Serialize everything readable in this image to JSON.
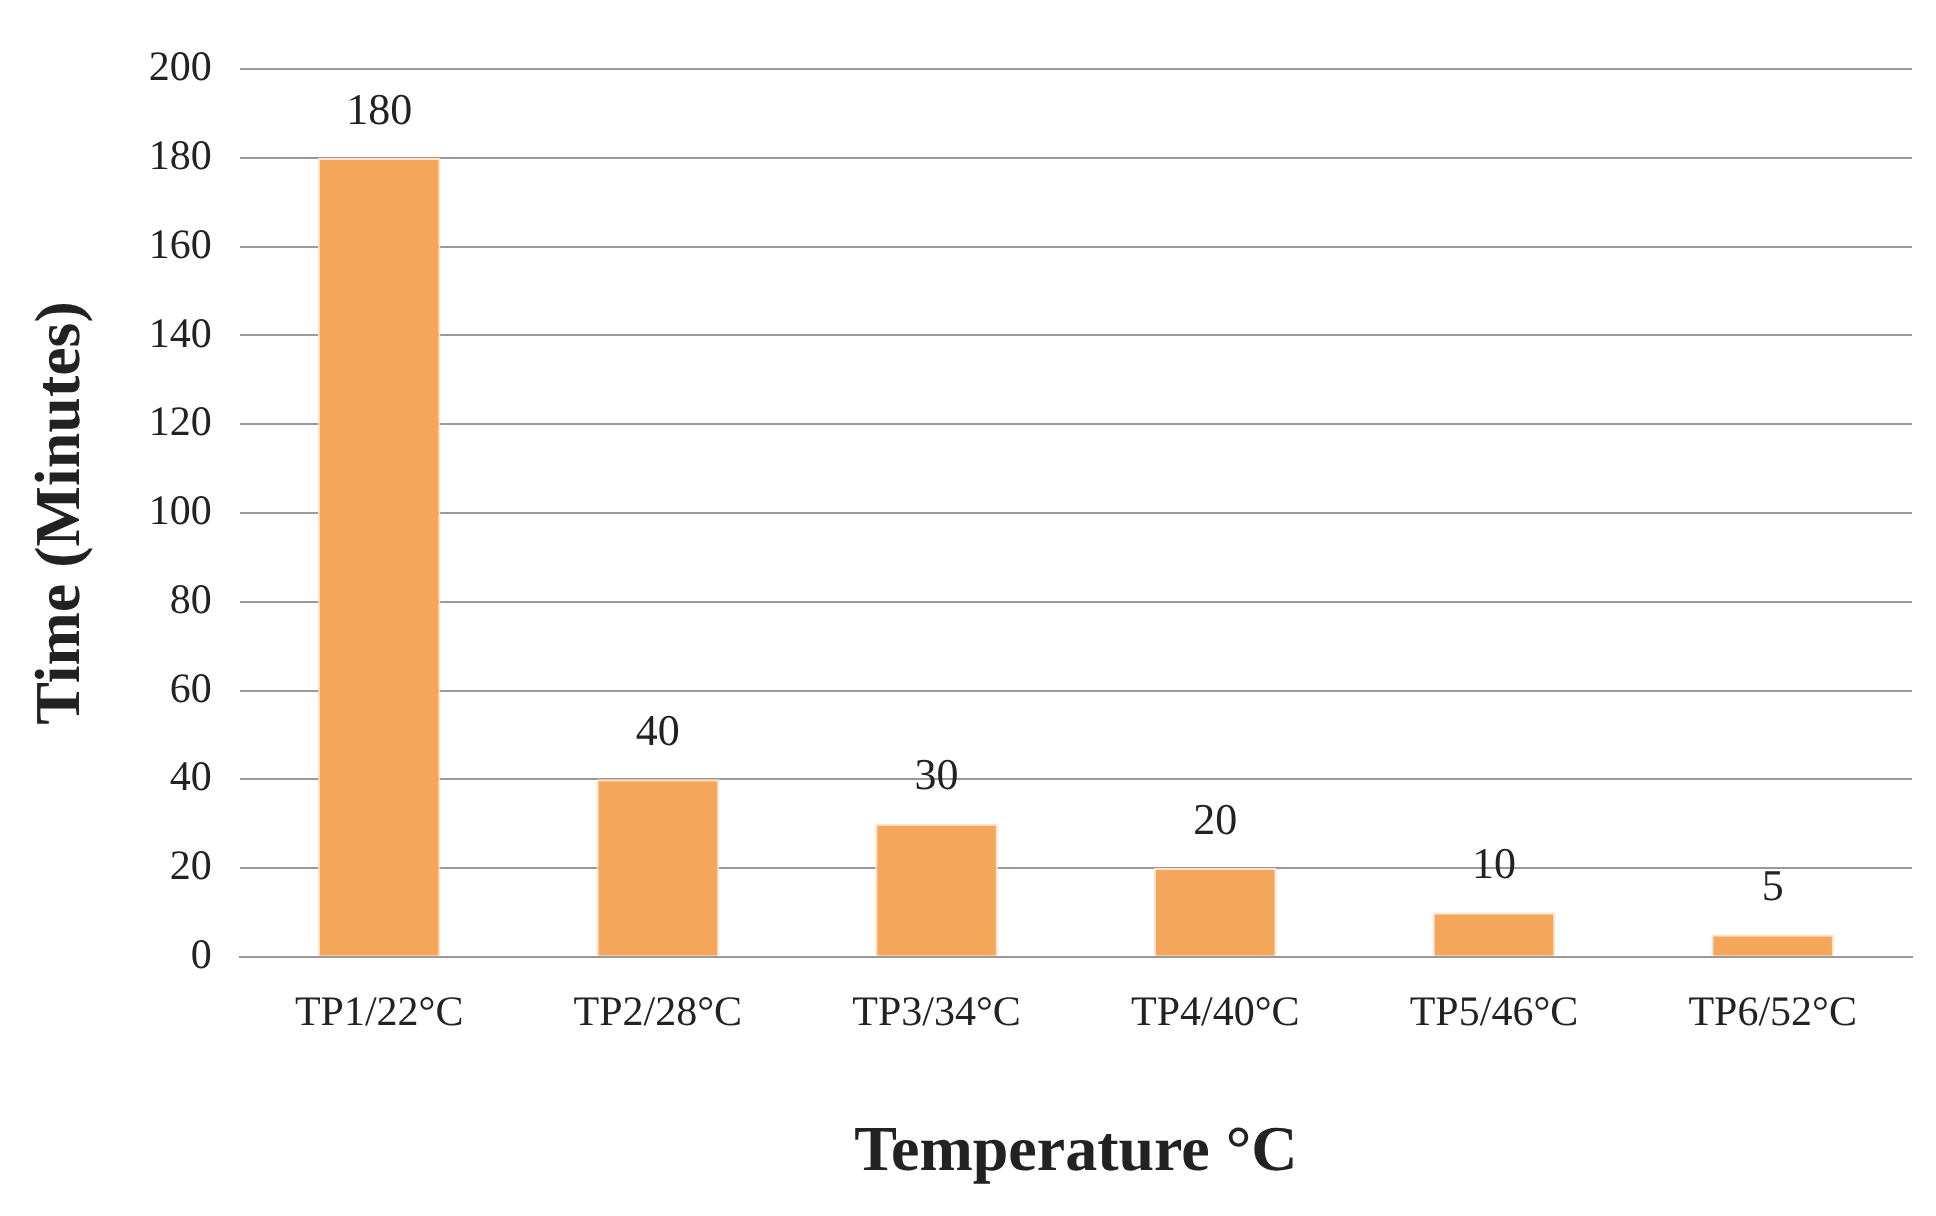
{
  "chart_data": {
    "type": "bar",
    "xlabel": "Temperature °C",
    "ylabel": "Time (Minutes)",
    "categories": [
      "TP1/22°C",
      "TP2/28°C",
      "TP3/34°C",
      "TP4/40°C",
      "TP5/46°C",
      "TP6/52°C"
    ],
    "values": [
      180,
      40,
      30,
      20,
      10,
      5
    ],
    "color": "#f4a65a",
    "ylim": [
      0,
      200
    ],
    "yticks": [
      0,
      20,
      40,
      60,
      80,
      100,
      120,
      140,
      160,
      180,
      200
    ],
    "grid": "y",
    "data_labels": true
  }
}
